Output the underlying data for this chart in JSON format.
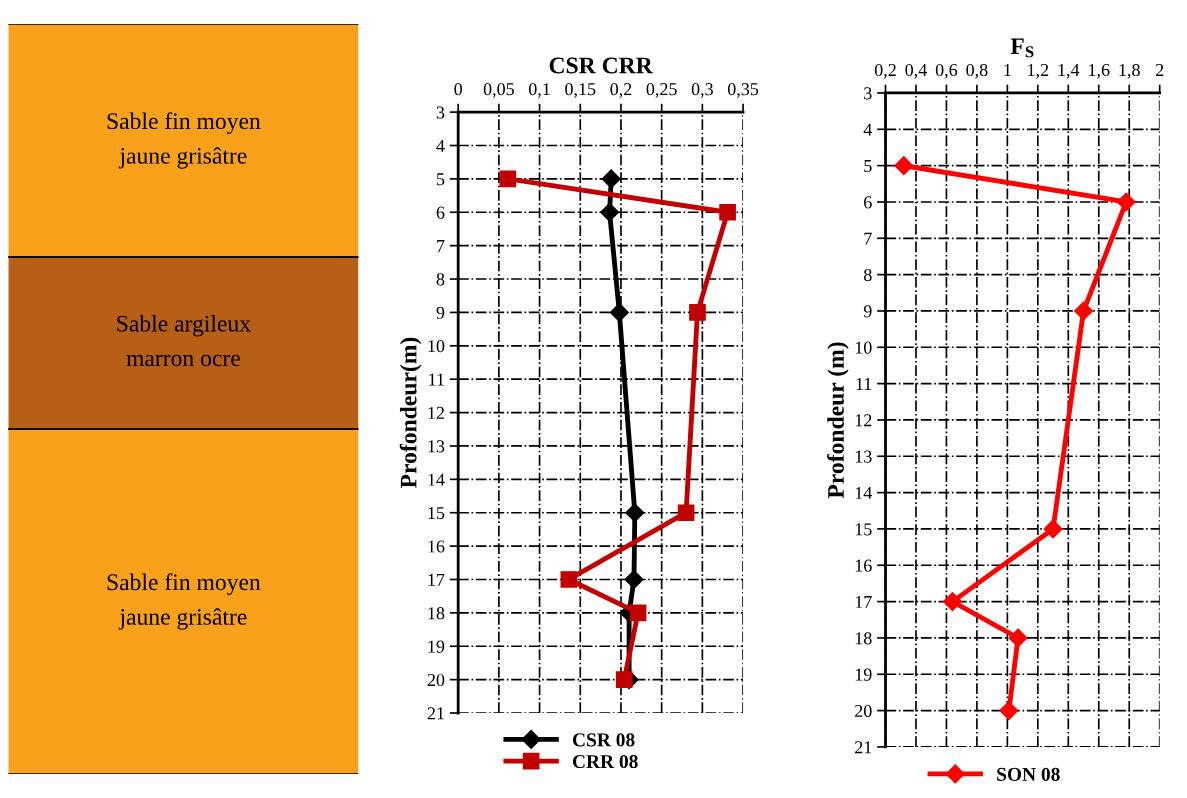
{
  "chart_data": [
    {
      "type": "other",
      "categories": [
        "Sable fin moyen\njaune grisâtre",
        "Sable argileux\nmarron ocre",
        "Sable fin moyen\njaune grisâtre"
      ],
      "colors": [
        "#f9a11b",
        "#b85f17",
        "#f9a11b"
      ]
    },
    {
      "type": "line",
      "title": "CSR CRR",
      "ylabel": "Profondeur(m)",
      "orientation": "horizontal",
      "xlim": [
        0,
        0.35
      ],
      "xticks": [
        0,
        {
          "value": 0.05,
          "label": "0,05"
        },
        {
          "value": 0.1,
          "label": "0,1"
        },
        {
          "value": 0.15,
          "label": "0,15"
        },
        {
          "value": 0.2,
          "label": "0,2"
        },
        {
          "value": 0.25,
          "label": "0,25"
        },
        {
          "value": 0.3,
          "label": "0,3"
        },
        {
          "value": 0.35,
          "label": "0,35"
        }
      ],
      "ylim": [
        21,
        3
      ],
      "yticks": [
        3,
        4,
        5,
        6,
        7,
        8,
        9,
        10,
        11,
        12,
        13,
        14,
        15,
        16,
        17,
        18,
        19,
        20,
        21
      ],
      "grid": true,
      "legend": "bottom",
      "line_style": "solid",
      "series": [
        {
          "name": "CSR 08",
          "color": "#000000",
          "marker": "diamond",
          "values": [
            0.188,
            0.186,
            0.198,
            0.217,
            0.216,
            0.21,
            0.21
          ],
          "x": [
            5,
            6,
            9,
            15,
            17,
            18,
            20
          ]
        },
        {
          "name": "CRR 08",
          "color": "#c00000",
          "marker": "square",
          "values": [
            0.061,
            0.331,
            0.294,
            0.28,
            0.136,
            0.221,
            0.204
          ],
          "x": [
            5,
            6,
            9,
            15,
            17,
            18,
            20
          ]
        }
      ]
    },
    {
      "type": "line",
      "title": "F$_{S}$",
      "ylabel": "Profondeur (m)",
      "orientation": "horizontal",
      "xlim": [
        0.2,
        2
      ],
      "xticks": [
        {
          "value": 0.2,
          "label": "0,2"
        },
        {
          "value": 0.4,
          "label": "0,4"
        },
        {
          "value": 0.6,
          "label": "0,6"
        },
        {
          "value": 0.8,
          "label": "0,8"
        },
        1,
        {
          "value": 1.2,
          "label": "1,2"
        },
        {
          "value": 1.4,
          "label": "1,4"
        },
        {
          "value": 1.6,
          "label": "1,6"
        },
        {
          "value": 1.8,
          "label": "1,8"
        },
        2
      ],
      "ylim": [
        21,
        3
      ],
      "yticks": [
        3,
        4,
        5,
        6,
        7,
        8,
        9,
        10,
        11,
        12,
        13,
        14,
        15,
        16,
        17,
        18,
        19,
        20,
        21
      ],
      "grid": true,
      "legend": "bottom",
      "line_style": "solid",
      "series": [
        {
          "name": "SON 08",
          "color": "#ff0000",
          "marker": "diamond",
          "values": [
            0.32,
            1.78,
            1.5,
            1.3,
            0.64,
            1.07,
            1.01
          ],
          "x": [
            5,
            6,
            9,
            15,
            17,
            18,
            20
          ]
        }
      ]
    }
  ]
}
